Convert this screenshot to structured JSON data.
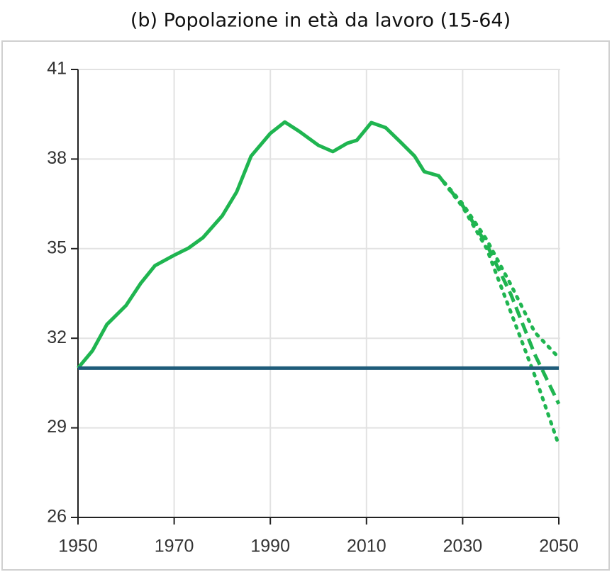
{
  "chart_data": {
    "type": "line",
    "title": "(b) Popolazione in età da lavoro (15-64)",
    "xlim": [
      1950,
      2050
    ],
    "xticks": [
      1950,
      1970,
      1990,
      2010,
      2030,
      2050
    ],
    "ylim": [
      26,
      41
    ],
    "yticks": [
      26,
      29,
      32,
      35,
      38,
      41
    ],
    "grid": true,
    "series": [
      {
        "color": "#1fb550",
        "style": "solid",
        "x": [
          1950,
          1953,
          1956,
          1960,
          1963,
          1966,
          1970,
          1973,
          1976,
          1980,
          1983,
          1986,
          1990,
          1993,
          1996,
          2000,
          2003,
          2006,
          2008,
          2011,
          2014,
          2017,
          2020,
          2022,
          2025
        ],
        "values": [
          31.0,
          31.58,
          32.46,
          33.1,
          33.83,
          34.43,
          34.78,
          35.02,
          35.37,
          36.1,
          36.9,
          38.1,
          38.86,
          39.24,
          38.93,
          38.46,
          38.25,
          38.53,
          38.63,
          39.22,
          39.05,
          38.58,
          38.1,
          37.58,
          37.44
        ]
      },
      {
        "color": "#1fb550",
        "style": "dashed",
        "x": [
          2025,
          2030,
          2035,
          2040,
          2045,
          2050
        ],
        "values": [
          37.44,
          36.44,
          35.14,
          33.48,
          31.46,
          29.8
        ]
      },
      {
        "color": "#1fb550",
        "style": "dotted",
        "x": [
          2025,
          2030,
          2035,
          2040,
          2045,
          2050
        ],
        "values": [
          37.44,
          36.5,
          35.3,
          33.8,
          32.2,
          31.35
        ]
      },
      {
        "color": "#1fb550",
        "style": "dotted",
        "x": [
          2025,
          2030,
          2035,
          2040,
          2045,
          2050
        ],
        "values": [
          37.44,
          36.4,
          35.0,
          32.88,
          30.75,
          28.42
        ]
      },
      {
        "color": "#1f5c7a",
        "style": "solid",
        "x": [
          1950,
          2050
        ],
        "values": [
          31,
          31
        ]
      }
    ]
  }
}
